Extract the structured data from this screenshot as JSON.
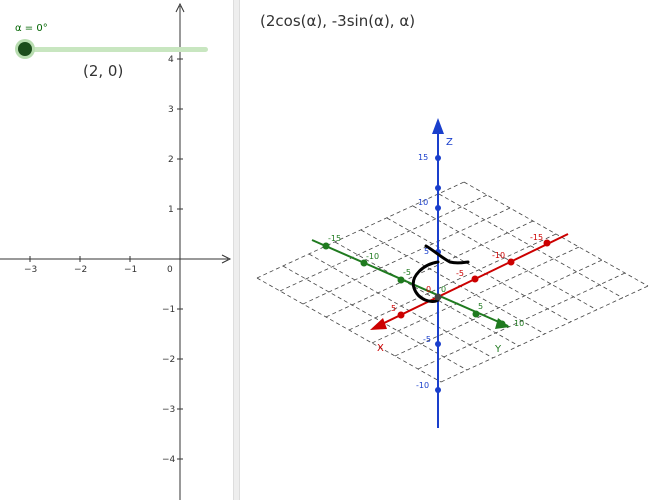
{
  "graphics2d": {
    "slider": {
      "label": "α = 0°",
      "value_deg": 0
    },
    "point_label": "(2, 0)",
    "x_ticks": [
      "−3",
      "−2",
      "−1",
      "0"
    ],
    "y_ticks": [
      "4",
      "3",
      "2",
      "1",
      "−1",
      "−2",
      "−3",
      "−4"
    ]
  },
  "graphics3d": {
    "title": "(2cos(α), -3sin(α), α)",
    "axes": {
      "x": {
        "label": "X",
        "color": "#cc0000",
        "ticks": [
          "-15",
          "-10",
          "-5",
          "0",
          "5"
        ]
      },
      "y": {
        "label": "Y",
        "color": "#1f7a1f",
        "ticks": [
          "-15",
          "-10",
          "-5",
          "0",
          "5",
          "10"
        ]
      },
      "z": {
        "label": "Z",
        "color": "#1a3fcc",
        "ticks": [
          "15",
          "10",
          "5",
          "-5",
          "-10"
        ]
      }
    },
    "curve_color": "#000000"
  }
}
